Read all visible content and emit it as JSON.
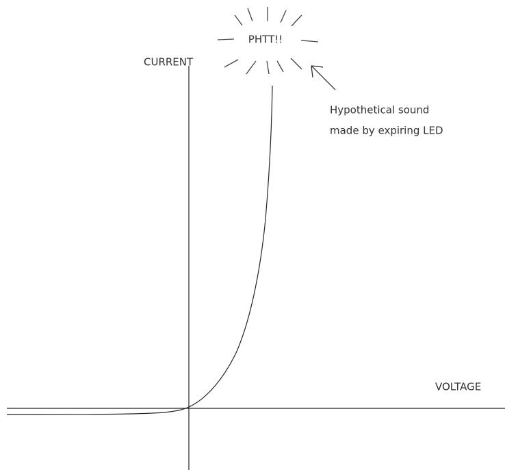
{
  "axes": {
    "y_label": "CURRENT",
    "x_label": "VOLTAGE"
  },
  "sound": "PHTT!!",
  "annotation": {
    "lines": [
      "Hypothetical sound",
      "made by expiring LED"
    ]
  }
}
